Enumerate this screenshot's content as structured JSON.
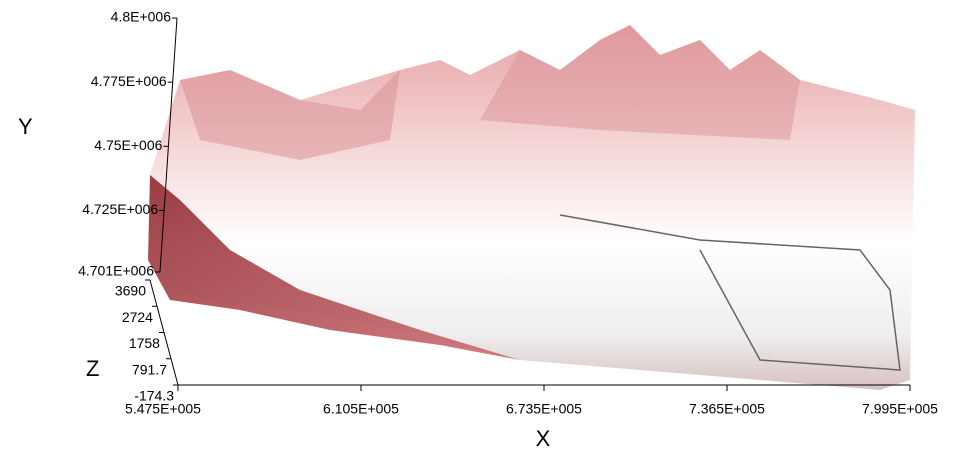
{
  "chart_data": {
    "type": "surface",
    "x_label": "X",
    "y_label": "Y",
    "z_label": "Z",
    "xlim": [
      547500,
      799500
    ],
    "xticks": [
      {
        "value": 547500,
        "label": "5.475E+005"
      },
      {
        "value": 610500,
        "label": "6.105E+005"
      },
      {
        "value": 673500,
        "label": "6.735E+005"
      },
      {
        "value": 736500,
        "label": "7.365E+005"
      },
      {
        "value": 799500,
        "label": "7.995E+005"
      }
    ],
    "ylim": [
      4701000,
      4800000
    ],
    "yticks": [
      {
        "value": 4701000,
        "label": "4.701E+006"
      },
      {
        "value": 4725000,
        "label": "4.725E+006"
      },
      {
        "value": 4750000,
        "label": "4.75E+006"
      },
      {
        "value": 4775000,
        "label": "4.775E+006"
      },
      {
        "value": 4800000,
        "label": "4.8E+006"
      }
    ],
    "zlim": [
      -174.3,
      3690
    ],
    "zticks": [
      -174.3,
      791.7,
      1758,
      2724,
      3690
    ]
  }
}
